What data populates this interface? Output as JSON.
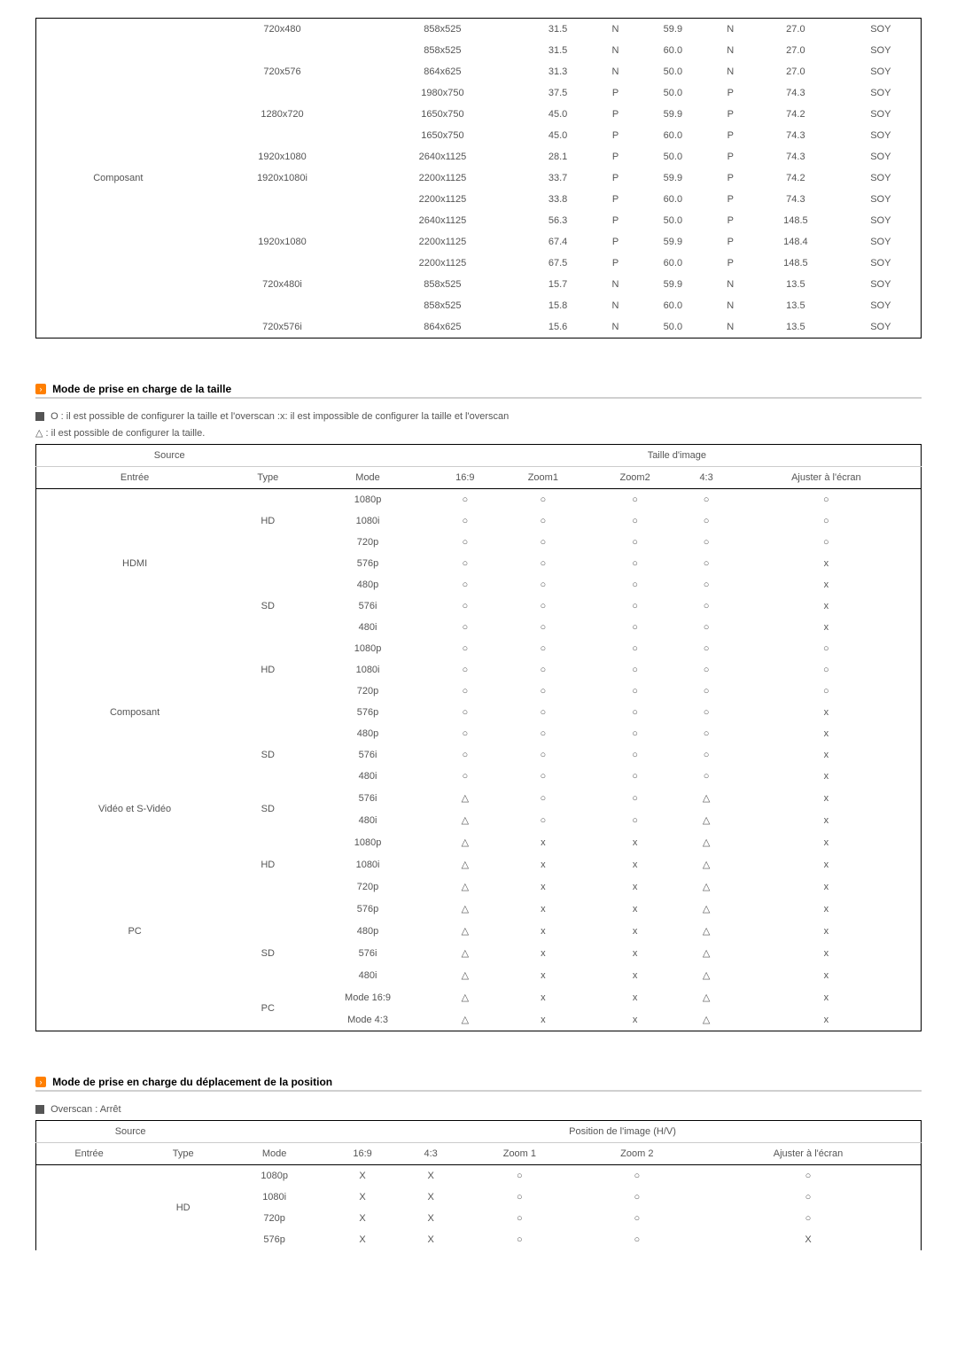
{
  "table1": {
    "group_label": "Composant",
    "rows": [
      {
        "res": "720x480",
        "total": "858x525",
        "v": "31.5",
        "hv": "N",
        "f": "59.9",
        "np": "N",
        "d": "27.0",
        "s": "SOY"
      },
      {
        "res": "",
        "total": "858x525",
        "v": "31.5",
        "hv": "N",
        "f": "60.0",
        "np": "N",
        "d": "27.0",
        "s": "SOY"
      },
      {
        "res": "720x576",
        "total": "864x625",
        "v": "31.3",
        "hv": "N",
        "f": "50.0",
        "np": "N",
        "d": "27.0",
        "s": "SOY"
      },
      {
        "res": "",
        "total": "1980x750",
        "v": "37.5",
        "hv": "P",
        "f": "50.0",
        "np": "P",
        "d": "74.3",
        "s": "SOY"
      },
      {
        "res": "1280x720",
        "total": "1650x750",
        "v": "45.0",
        "hv": "P",
        "f": "59.9",
        "np": "P",
        "d": "74.2",
        "s": "SOY"
      },
      {
        "res": "",
        "total": "1650x750",
        "v": "45.0",
        "hv": "P",
        "f": "60.0",
        "np": "P",
        "d": "74.3",
        "s": "SOY"
      },
      {
        "res": "1920x1080",
        "total": "2640x1125",
        "v": "28.1",
        "hv": "P",
        "f": "50.0",
        "np": "P",
        "d": "74.3",
        "s": "SOY"
      },
      {
        "res": "1920x1080i",
        "total": "2200x1125",
        "v": "33.7",
        "hv": "P",
        "f": "59.9",
        "np": "P",
        "d": "74.2",
        "s": "SOY"
      },
      {
        "res": "",
        "total": "2200x1125",
        "v": "33.8",
        "hv": "P",
        "f": "60.0",
        "np": "P",
        "d": "74.3",
        "s": "SOY"
      },
      {
        "res": "",
        "total": "2640x1125",
        "v": "56.3",
        "hv": "P",
        "f": "50.0",
        "np": "P",
        "d": "148.5",
        "s": "SOY"
      },
      {
        "res": "1920x1080",
        "total": "2200x1125",
        "v": "67.4",
        "hv": "P",
        "f": "59.9",
        "np": "P",
        "d": "148.4",
        "s": "SOY"
      },
      {
        "res": "",
        "total": "2200x1125",
        "v": "67.5",
        "hv": "P",
        "f": "60.0",
        "np": "P",
        "d": "148.5",
        "s": "SOY"
      },
      {
        "res": "720x480i",
        "total": "858x525",
        "v": "15.7",
        "hv": "N",
        "f": "59.9",
        "np": "N",
        "d": "13.5",
        "s": "SOY"
      },
      {
        "res": "",
        "total": "858x525",
        "v": "15.8",
        "hv": "N",
        "f": "60.0",
        "np": "N",
        "d": "13.5",
        "s": "SOY"
      },
      {
        "res": "720x576i",
        "total": "864x625",
        "v": "15.6",
        "hv": "N",
        "f": "50.0",
        "np": "N",
        "d": "13.5",
        "s": "SOY"
      }
    ]
  },
  "section2": {
    "title": "Mode de prise en charge de la taille",
    "note1": "O : il est possible de configurer la taille et l'overscan :x: il est impossible de configurer la taille et l'overscan",
    "note2": "△ : il est possible de configurer la taille."
  },
  "table2": {
    "header_source": "Source",
    "header_taille": "Taille d'image",
    "cols": {
      "entree": "Entrée",
      "type": "Type",
      "mode": "Mode",
      "r169": "16:9",
      "z1": "Zoom1",
      "z2": "Zoom2",
      "r43": "4:3",
      "ajust": "Ajuster à l'écran"
    },
    "groups": [
      {
        "entree": "HDMI",
        "blocks": [
          {
            "type": "HD",
            "rows": [
              {
                "mode": "1080p",
                "a": "○",
                "b": "○",
                "c": "○",
                "d": "○",
                "e": "○"
              },
              {
                "mode": "1080i",
                "a": "○",
                "b": "○",
                "c": "○",
                "d": "○",
                "e": "○"
              },
              {
                "mode": "720p",
                "a": "○",
                "b": "○",
                "c": "○",
                "d": "○",
                "e": "○"
              }
            ]
          },
          {
            "type": "",
            "rows": [
              {
                "mode": "576p",
                "a": "○",
                "b": "○",
                "c": "○",
                "d": "○",
                "e": "x"
              }
            ]
          },
          {
            "type": "SD",
            "rows": [
              {
                "mode": "480p",
                "a": "○",
                "b": "○",
                "c": "○",
                "d": "○",
                "e": "x"
              },
              {
                "mode": "576i",
                "a": "○",
                "b": "○",
                "c": "○",
                "d": "○",
                "e": "x"
              },
              {
                "mode": "480i",
                "a": "○",
                "b": "○",
                "c": "○",
                "d": "○",
                "e": "x"
              }
            ]
          }
        ]
      },
      {
        "entree": "Composant",
        "blocks": [
          {
            "type": "HD",
            "rows": [
              {
                "mode": "1080p",
                "a": "○",
                "b": "○",
                "c": "○",
                "d": "○",
                "e": "○"
              },
              {
                "mode": "1080i",
                "a": "○",
                "b": "○",
                "c": "○",
                "d": "○",
                "e": "○"
              },
              {
                "mode": "720p",
                "a": "○",
                "b": "○",
                "c": "○",
                "d": "○",
                "e": "○"
              }
            ]
          },
          {
            "type": "",
            "rows": [
              {
                "mode": "576p",
                "a": "○",
                "b": "○",
                "c": "○",
                "d": "○",
                "e": "x"
              }
            ]
          },
          {
            "type": "SD",
            "rows": [
              {
                "mode": "480p",
                "a": "○",
                "b": "○",
                "c": "○",
                "d": "○",
                "e": "x"
              },
              {
                "mode": "576i",
                "a": "○",
                "b": "○",
                "c": "○",
                "d": "○",
                "e": "x"
              },
              {
                "mode": "480i",
                "a": "○",
                "b": "○",
                "c": "○",
                "d": "○",
                "e": "x"
              }
            ]
          }
        ]
      },
      {
        "entree": "Vidéo et S-Vidéo",
        "blocks": [
          {
            "type": "SD",
            "rows": [
              {
                "mode": "576i",
                "a": "△",
                "b": "○",
                "c": "○",
                "d": "△",
                "e": "x"
              },
              {
                "mode": "480i",
                "a": "△",
                "b": "○",
                "c": "○",
                "d": "△",
                "e": "x"
              }
            ]
          }
        ]
      },
      {
        "entree": "PC",
        "blocks": [
          {
            "type": "HD",
            "rows": [
              {
                "mode": "1080p",
                "a": "△",
                "b": "x",
                "c": "x",
                "d": "△",
                "e": "x"
              },
              {
                "mode": "1080i",
                "a": "△",
                "b": "x",
                "c": "x",
                "d": "△",
                "e": "x"
              },
              {
                "mode": "720p",
                "a": "△",
                "b": "x",
                "c": "x",
                "d": "△",
                "e": "x"
              }
            ]
          },
          {
            "type": "",
            "rows": [
              {
                "mode": "576p",
                "a": "△",
                "b": "x",
                "c": "x",
                "d": "△",
                "e": "x"
              }
            ]
          },
          {
            "type": "SD",
            "rows": [
              {
                "mode": "480p",
                "a": "△",
                "b": "x",
                "c": "x",
                "d": "△",
                "e": "x"
              },
              {
                "mode": "576i",
                "a": "△",
                "b": "x",
                "c": "x",
                "d": "△",
                "e": "x"
              },
              {
                "mode": "480i",
                "a": "△",
                "b": "x",
                "c": "x",
                "d": "△",
                "e": "x"
              }
            ]
          },
          {
            "type": "PC",
            "rows": [
              {
                "mode": "Mode 16:9",
                "a": "△",
                "b": "x",
                "c": "x",
                "d": "△",
                "e": "x"
              },
              {
                "mode": "Mode 4:3",
                "a": "△",
                "b": "x",
                "c": "x",
                "d": "△",
                "e": "x"
              }
            ]
          }
        ]
      }
    ]
  },
  "section3": {
    "title": "Mode de prise en charge du déplacement de la position",
    "note": "Overscan : Arrêt"
  },
  "table3": {
    "header_source": "Source",
    "header_pos": "Position de l'image (H/V)",
    "cols": {
      "entree": "Entrée",
      "type": "Type",
      "mode": "Mode",
      "r169": "16:9",
      "r43": "4:3",
      "z1": "Zoom 1",
      "z2": "Zoom 2",
      "ajust": "Ajuster à l'écran"
    },
    "type": "HD",
    "rows": [
      {
        "mode": "1080p",
        "a": "X",
        "b": "X",
        "c": "○",
        "d": "○",
        "e": "○"
      },
      {
        "mode": "1080i",
        "a": "X",
        "b": "X",
        "c": "○",
        "d": "○",
        "e": "○"
      },
      {
        "mode": "720p",
        "a": "X",
        "b": "X",
        "c": "○",
        "d": "○",
        "e": "○"
      },
      {
        "mode": "576p",
        "a": "X",
        "b": "X",
        "c": "○",
        "d": "○",
        "e": "X"
      }
    ]
  }
}
